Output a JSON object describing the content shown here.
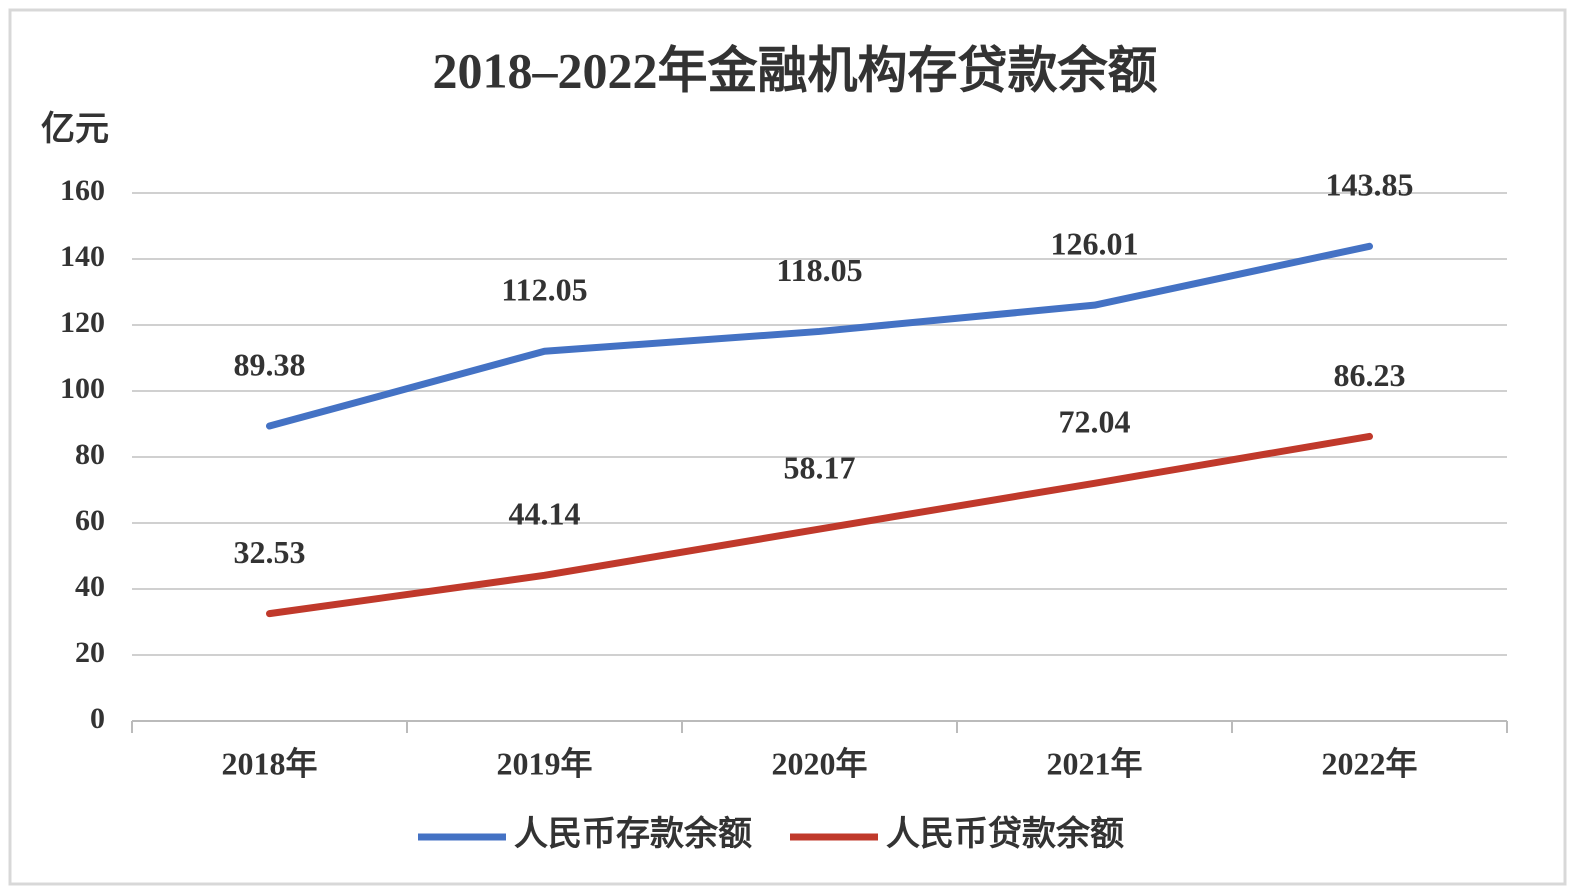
{
  "chart_data": {
    "type": "line",
    "title": "2018–2022年金融机构存贷款余额",
    "y_label": "亿元",
    "categories": [
      "2018年",
      "2019年",
      "2020年",
      "2021年",
      "2022年"
    ],
    "series": [
      {
        "name": "人民币存款余额",
        "color": "#4472c4",
        "values": [
          89.38,
          112.05,
          118.05,
          126.01,
          143.85
        ]
      },
      {
        "name": "人民币贷款余额",
        "color": "#c0392b",
        "values": [
          32.53,
          44.14,
          58.17,
          72.04,
          86.23
        ]
      }
    ],
    "ylim": [
      0,
      160
    ],
    "yticks": [
      0,
      20,
      40,
      60,
      80,
      100,
      120,
      140,
      160
    ],
    "grid": true,
    "legend": "bottom"
  }
}
